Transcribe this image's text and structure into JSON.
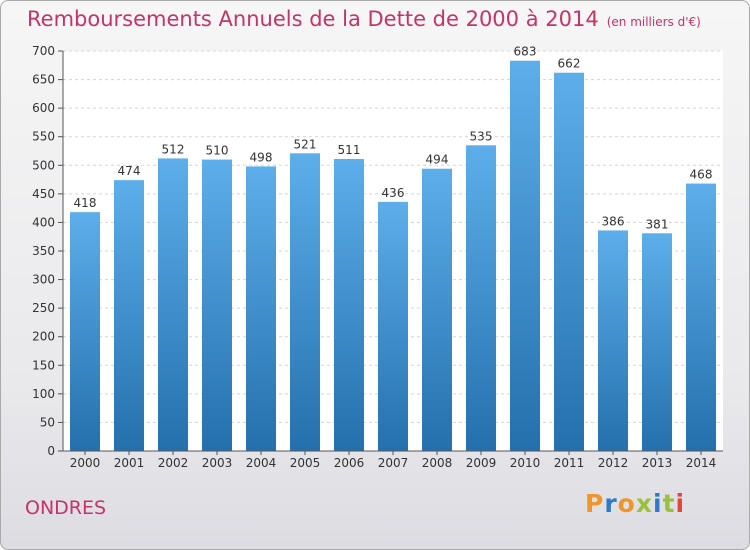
{
  "header": {
    "title": "Remboursements Annuels de la Dette de 2000 à 2014",
    "unit": "(en milliers d'€)"
  },
  "footer": {
    "place": "ONDRES",
    "logo": "Proxiti"
  },
  "colors": {
    "title": "#c4336a",
    "bar_top": "#5daeea",
    "bar_bottom": "#2470ad",
    "grid": "#d4d4d4"
  },
  "chart_data": {
    "type": "bar",
    "title": "Remboursements Annuels de la Dette de 2000 à 2014",
    "subtitle": "(en milliers d'€)",
    "xlabel": "",
    "ylabel": "",
    "categories": [
      "2000",
      "2001",
      "2002",
      "2003",
      "2004",
      "2005",
      "2006",
      "2007",
      "2008",
      "2009",
      "2010",
      "2011",
      "2012",
      "2013",
      "2014"
    ],
    "values": [
      418,
      474,
      512,
      510,
      498,
      521,
      511,
      436,
      494,
      535,
      683,
      662,
      386,
      381,
      468
    ],
    "ylim": [
      0,
      700
    ],
    "yticks": [
      0,
      50,
      100,
      150,
      200,
      250,
      300,
      350,
      400,
      450,
      500,
      550,
      600,
      650,
      700
    ],
    "grid": true,
    "data_labels": true
  }
}
